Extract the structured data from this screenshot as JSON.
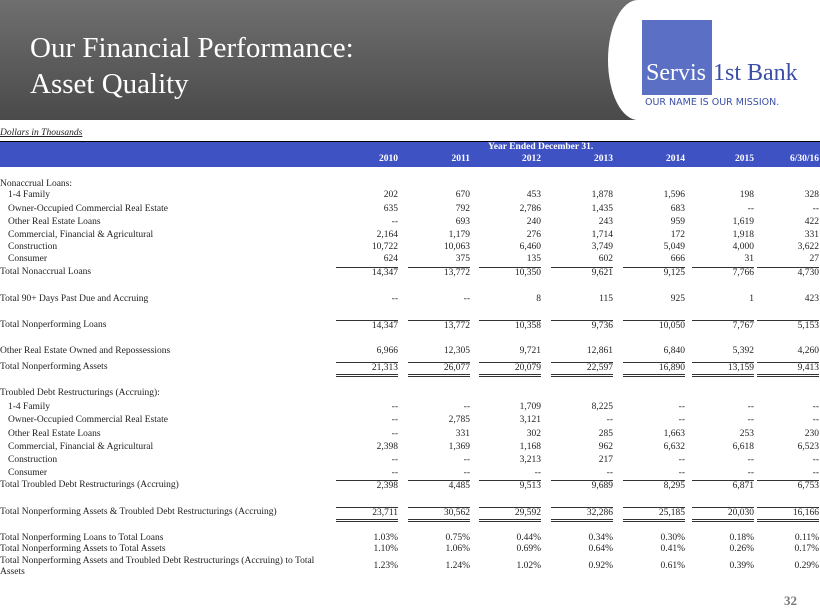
{
  "header": {
    "title_lines": [
      "Our Financial Performance:",
      "Asset Quality"
    ],
    "logo": {
      "left": "Servis",
      "right": "1st Bank",
      "tagline": "OUR NAME IS OUR MISSION."
    }
  },
  "table": {
    "unit_note": "Dollars in Thousands",
    "group_header": "Year Ended December 31.",
    "columns": [
      "2010",
      "2011",
      "2012",
      "2013",
      "2014",
      "2015",
      "6/30/16"
    ],
    "rows": [
      {
        "label": "Nonaccrual Loans:"
      },
      {
        "label": "1-4 Family",
        "values": [
          "202",
          "670",
          "453",
          "1,878",
          "1,596",
          "198",
          "328"
        ]
      },
      {
        "label": "Owner-Occupied Commercial Real Estate",
        "values": [
          "635",
          "792",
          "2,786",
          "1,435",
          "683",
          "--",
          "--"
        ]
      },
      {
        "label": "Other Real Estate Loans",
        "values": [
          "--",
          "693",
          "240",
          "243",
          "959",
          "1,619",
          "422"
        ]
      },
      {
        "label": "Commercial, Financial & Agricultural",
        "values": [
          "2,164",
          "1,179",
          "276",
          "1,714",
          "172",
          "1,918",
          "331"
        ]
      },
      {
        "label": "Construction",
        "values": [
          "10,722",
          "10,063",
          "6,460",
          "3,749",
          "5,049",
          "4,000",
          "3,622"
        ]
      },
      {
        "label": "Consumer",
        "values": [
          "624",
          "375",
          "135",
          "602",
          "666",
          "31",
          "27"
        ]
      },
      {
        "label": "Total Nonaccrual Loans",
        "values": [
          "14,347",
          "13,772",
          "10,350",
          "9,621",
          "9,125",
          "7,766",
          "4,730"
        ]
      },
      {
        "label": "Total 90+ Days Past Due and Accruing",
        "values": [
          "--",
          "--",
          "8",
          "115",
          "925",
          "1",
          "423"
        ]
      },
      {
        "label": "Total Nonperforming Loans",
        "values": [
          "14,347",
          "13,772",
          "10,358",
          "9,736",
          "10,050",
          "7,767",
          "5,153"
        ]
      },
      {
        "label": "Other Real Estate Owned and Repossessions",
        "values": [
          "6,966",
          "12,305",
          "9,721",
          "12,861",
          "6,840",
          "5,392",
          "4,260"
        ]
      },
      {
        "label": "Total Nonperforming Assets",
        "values": [
          "21,313",
          "26,077",
          "20,079",
          "22,597",
          "16,890",
          "13,159",
          "9,413"
        ]
      },
      {
        "label": "Troubled Debt Restructurings (Accruing):"
      },
      {
        "label": "1-4 Family",
        "values": [
          "--",
          "--",
          "1,709",
          "8,225",
          "--",
          "--",
          "--"
        ]
      },
      {
        "label": "Owner-Occupied Commercial Real Estate",
        "values": [
          "--",
          "2,785",
          "3,121",
          "--",
          "--",
          "--",
          "--"
        ]
      },
      {
        "label": "Other Real Estate Loans",
        "values": [
          "--",
          "331",
          "302",
          "285",
          "1,663",
          "253",
          "230"
        ]
      },
      {
        "label": "Commercial, Financial & Agricultural",
        "values": [
          "2,398",
          "1,369",
          "1,168",
          "962",
          "6,632",
          "6,618",
          "6,523"
        ]
      },
      {
        "label": "Construction",
        "values": [
          "--",
          "--",
          "3,213",
          "217",
          "--",
          "--",
          "--"
        ]
      },
      {
        "label": "Consumer",
        "values": [
          "--",
          "--",
          "--",
          "--",
          "--",
          "--",
          "--"
        ]
      },
      {
        "label": "Total Troubled Debt Restructurings (Accruing)",
        "values": [
          "2,398",
          "4,485",
          "9,513",
          "9,689",
          "8,295",
          "6,871",
          "6,753"
        ]
      },
      {
        "label": "Total Nonperforming Assets & Troubled Debt Restructurings (Accruing)",
        "values": [
          "23,711",
          "30,562",
          "29,592",
          "32,286",
          "25,185",
          "20,030",
          "16,166"
        ]
      },
      {
        "label": "Total Nonperforming Loans to Total Loans",
        "values": [
          "1.03%",
          "0.75%",
          "0.44%",
          "0.34%",
          "0.30%",
          "0.18%",
          "0.11%"
        ]
      },
      {
        "label": "Total Nonperforming Assets to Total Assets",
        "values": [
          "1.10%",
          "1.06%",
          "0.69%",
          "0.64%",
          "0.41%",
          "0.26%",
          "0.17%"
        ]
      },
      {
        "label": "Total Nonperforming Assets and Troubled Debt Restructurings (Accruing) to Total Assets",
        "values": [
          "1.23%",
          "1.24%",
          "1.02%",
          "0.92%",
          "0.61%",
          "0.39%",
          "0.29%"
        ]
      }
    ]
  },
  "footer": {
    "page_number": "32"
  }
}
